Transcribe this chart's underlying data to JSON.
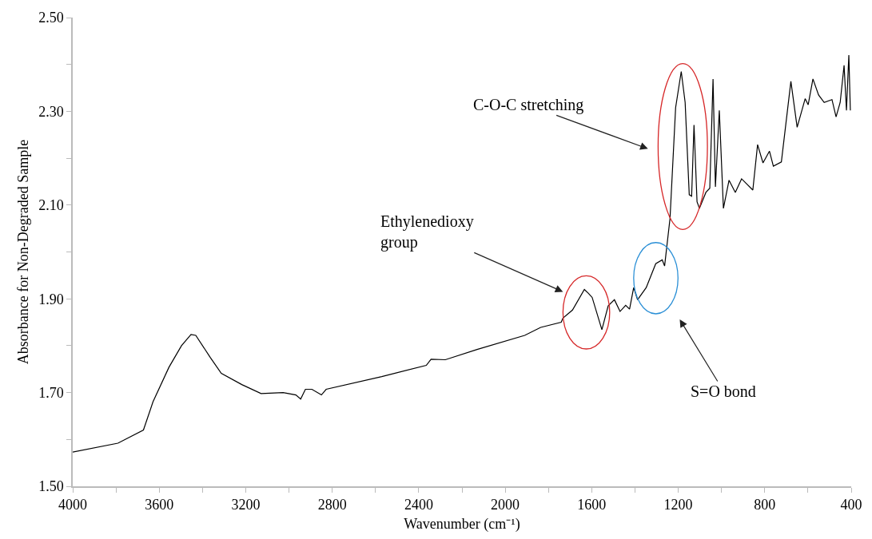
{
  "chart_data": {
    "type": "line",
    "xlabel": "Wavenumber (cm⁻¹)",
    "ylabel": "Absorbance for Non-Degraded Sample",
    "xlim": [
      4000,
      400
    ],
    "xticks": [
      4000,
      {
        "value": 3800,
        "label": null
      },
      3600,
      {
        "value": 3400,
        "label": null
      },
      3200,
      {
        "value": 3000,
        "label": null
      },
      2800,
      {
        "value": 2600,
        "label": null
      },
      2400,
      {
        "value": 2200,
        "label": null
      },
      2000,
      {
        "value": 1800,
        "label": null
      },
      1600,
      {
        "value": 1400,
        "label": null
      },
      1200,
      {
        "value": 1000,
        "label": null
      },
      800,
      {
        "value": 600,
        "label": null
      },
      400
    ],
    "ylim": [
      1.5,
      2.5
    ],
    "yticks": [
      {
        "value": 1.5,
        "label": "1.50"
      },
      {
        "value": 1.6,
        "label": null
      },
      {
        "value": 1.7,
        "label": "1.70"
      },
      {
        "value": 1.8,
        "label": null
      },
      {
        "value": 1.9,
        "label": "1.90"
      },
      {
        "value": 2.0,
        "label": null
      },
      {
        "value": 2.1,
        "label": "2.10"
      },
      {
        "value": 2.2,
        "label": null
      },
      {
        "value": 2.3,
        "label": "2.30"
      },
      {
        "value": 2.4,
        "label": null
      },
      {
        "value": 2.5,
        "label": "2.50"
      }
    ],
    "grid": false,
    "marker": "none",
    "line_style": "solid",
    "x": [
      4000,
      3791,
      3673,
      3629,
      3555,
      3497,
      3453,
      3431,
      3364,
      3313,
      3218,
      3129,
      3027,
      2968,
      2946,
      2924,
      2894,
      2850,
      2828,
      2571,
      2365,
      2343,
      2277,
      2130,
      1910,
      1836,
      1741,
      1733,
      1689,
      1634,
      1616,
      1598,
      1553,
      1524,
      1495,
      1469,
      1443,
      1425,
      1406,
      1388,
      1348,
      1304,
      1274,
      1263,
      1238,
      1212,
      1186,
      1168,
      1149,
      1138,
      1127,
      1113,
      1102,
      1072,
      1054,
      1039,
      1028,
      1010,
      991,
      965,
      936,
      907,
      855,
      833,
      808,
      778,
      760,
      723,
      679,
      650,
      613,
      599,
      577,
      551,
      525,
      489,
      470,
      451,
      433,
      422,
      411,
      404
    ],
    "series": [
      {
        "color": "#000000",
        "values": [
          1.573,
          1.592,
          1.62,
          1.68,
          1.754,
          1.8,
          1.824,
          1.822,
          1.775,
          1.741,
          1.717,
          1.698,
          1.7,
          1.695,
          1.686,
          1.707,
          1.707,
          1.695,
          1.707,
          1.734,
          1.758,
          1.771,
          1.77,
          1.792,
          1.822,
          1.839,
          1.85,
          1.859,
          1.876,
          1.92,
          1.912,
          1.903,
          1.834,
          1.885,
          1.898,
          1.873,
          1.886,
          1.878,
          1.924,
          1.898,
          1.924,
          1.975,
          1.983,
          1.97,
          2.071,
          2.308,
          2.385,
          2.319,
          2.122,
          2.119,
          2.271,
          2.107,
          2.093,
          2.127,
          2.136,
          2.369,
          2.139,
          2.302,
          2.093,
          2.153,
          2.127,
          2.156,
          2.132,
          2.229,
          2.19,
          2.215,
          2.183,
          2.192,
          2.364,
          2.266,
          2.327,
          2.314,
          2.369,
          2.335,
          2.319,
          2.325,
          2.288,
          2.319,
          2.398,
          2.302,
          2.42,
          2.302
        ]
      }
    ],
    "annotations": [
      "C-O-C stretching",
      "Ethylenedioxy\ngroup",
      "S=O bond"
    ]
  }
}
